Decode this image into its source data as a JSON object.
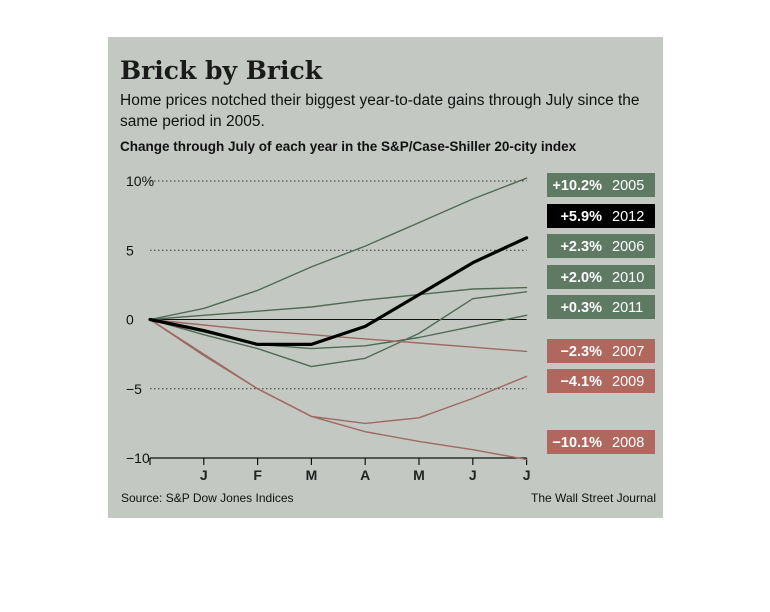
{
  "header": {
    "title": "Brick by Brick",
    "subtitle": "Home prices notched their biggest year-to-date gains through July since the same period in 2005."
  },
  "footer": {
    "source": "Source: S&P Dow Jones Indices",
    "publisher": "The Wall Street Journal"
  },
  "colors": {
    "panel": "#c3c9c2",
    "positive": "#4f6a55",
    "negative": "#9e6a62",
    "highlight": "#000000",
    "positive_tag": "#5e7a63",
    "negative_tag": "#b0675e"
  },
  "chart_data": {
    "type": "line",
    "title": "Change through July of each year in the S&P/Case-Shiller 20-city index",
    "xlabel": "",
    "ylabel": "",
    "x": [
      "",
      "J",
      "F",
      "M",
      "A",
      "M",
      "J",
      "J"
    ],
    "ylim": [
      -10,
      10
    ],
    "yticks": [
      {
        "value": 10,
        "label": "10%"
      },
      {
        "value": 5,
        "label": "5"
      },
      {
        "value": 0,
        "label": "0"
      },
      {
        "value": -5,
        "label": "−5"
      },
      {
        "value": -10,
        "label": "−10"
      }
    ],
    "grid": true,
    "series": [
      {
        "name": "2005",
        "label": "+10.2%",
        "group": "positive",
        "values": [
          0,
          0.8,
          2.1,
          3.8,
          5.3,
          7.0,
          8.7,
          10.2
        ]
      },
      {
        "name": "2012",
        "label": "+5.9%",
        "group": "highlight",
        "values": [
          0,
          -0.8,
          -1.8,
          -1.8,
          -0.5,
          1.8,
          4.1,
          5.9
        ]
      },
      {
        "name": "2006",
        "label": "+2.3%",
        "group": "positive",
        "values": [
          0,
          0.3,
          0.6,
          0.9,
          1.4,
          1.8,
          2.2,
          2.3
        ]
      },
      {
        "name": "2010",
        "label": "+2.0%",
        "group": "positive",
        "values": [
          0,
          -1.1,
          -2.1,
          -3.4,
          -2.8,
          -1.0,
          1.5,
          2.0
        ]
      },
      {
        "name": "2011",
        "label": "+0.3%",
        "group": "positive",
        "values": [
          0,
          -0.9,
          -1.8,
          -2.1,
          -1.9,
          -1.3,
          -0.5,
          0.3
        ]
      },
      {
        "name": "2007",
        "label": "−2.3%",
        "group": "negative",
        "values": [
          0,
          -0.4,
          -0.8,
          -1.1,
          -1.4,
          -1.7,
          -2.0,
          -2.3
        ]
      },
      {
        "name": "2009",
        "label": "−4.1%",
        "group": "negative",
        "values": [
          0,
          -2.6,
          -5.0,
          -7.0,
          -7.5,
          -7.1,
          -5.7,
          -4.1
        ]
      },
      {
        "name": "2008",
        "label": "−10.1%",
        "group": "negative",
        "values": [
          0,
          -2.5,
          -5.0,
          -7.0,
          -8.1,
          -8.8,
          -9.4,
          -10.1
        ]
      }
    ]
  }
}
